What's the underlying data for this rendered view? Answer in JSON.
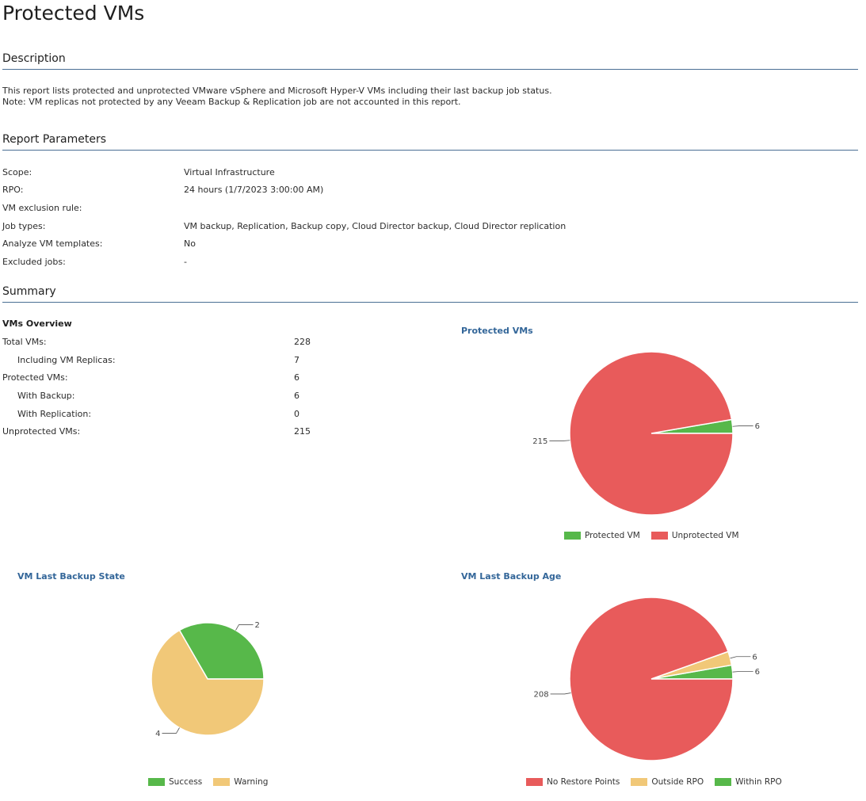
{
  "page_title": "Protected VMs",
  "colors": {
    "green": "#57b84a",
    "red": "#e85b5b",
    "yellow": "#f1c878",
    "header_line": "#4a6f94",
    "chart_title": "#336699"
  },
  "sections": {
    "description": "Description",
    "parameters": "Report Parameters",
    "summary": "Summary"
  },
  "description": {
    "line1": "This report lists protected and unprotected VMware vSphere and Microsoft Hyper-V VMs including their last backup job status.",
    "line2": "Note: VM replicas not protected by any Veeam Backup & Replication job are not accounted in this report."
  },
  "parameters": [
    {
      "label": "Scope:",
      "value": "Virtual Infrastructure"
    },
    {
      "label": "RPO:",
      "value": "24 hours (1/7/2023 3:00:00 AM)"
    },
    {
      "label": "VM exclusion rule:",
      "value": ""
    },
    {
      "label": "Job types:",
      "value": "VM backup, Replication, Backup copy, Cloud Director backup, Cloud Director replication"
    },
    {
      "label": "Analyze VM templates:",
      "value": "No"
    },
    {
      "label": "Excluded jobs:",
      "value": "-"
    }
  ],
  "overview": {
    "title": "VMs Overview",
    "rows": [
      {
        "label": "Total VMs:",
        "value": "228"
      },
      {
        "label": "Including VM Replicas:",
        "value": "7"
      },
      {
        "label": "Protected VMs:",
        "value": "6"
      },
      {
        "label": "With Backup:",
        "value": "6"
      },
      {
        "label": "With Replication:",
        "value": "0"
      },
      {
        "label": "Unprotected VMs:",
        "value": "215"
      }
    ]
  },
  "chart_data": [
    {
      "type": "pie",
      "title": "Protected VMs",
      "slices": [
        {
          "label": "Protected VM",
          "value": 6,
          "color": "#57b84a"
        },
        {
          "label": "Unprotected VM",
          "value": 215,
          "color": "#e85b5b"
        }
      ],
      "legend": "bottom"
    },
    {
      "type": "pie",
      "title": "VM Last Backup State",
      "slices": [
        {
          "label": "Success",
          "value": 2,
          "color": "#57b84a"
        },
        {
          "label": "Warning",
          "value": 4,
          "color": "#f1c878"
        }
      ],
      "legend": "bottom"
    },
    {
      "type": "pie",
      "title": "VM Last Backup Age",
      "slices": [
        {
          "label": "Within RPO",
          "value": 6,
          "color": "#57b84a"
        },
        {
          "label": "Outside RPO",
          "value": 6,
          "color": "#f1c878"
        },
        {
          "label": "No Restore Points",
          "value": 208,
          "color": "#e85b5b"
        }
      ],
      "legend_order": [
        "No Restore Points",
        "Outside RPO",
        "Within RPO"
      ],
      "legend": "bottom"
    }
  ]
}
